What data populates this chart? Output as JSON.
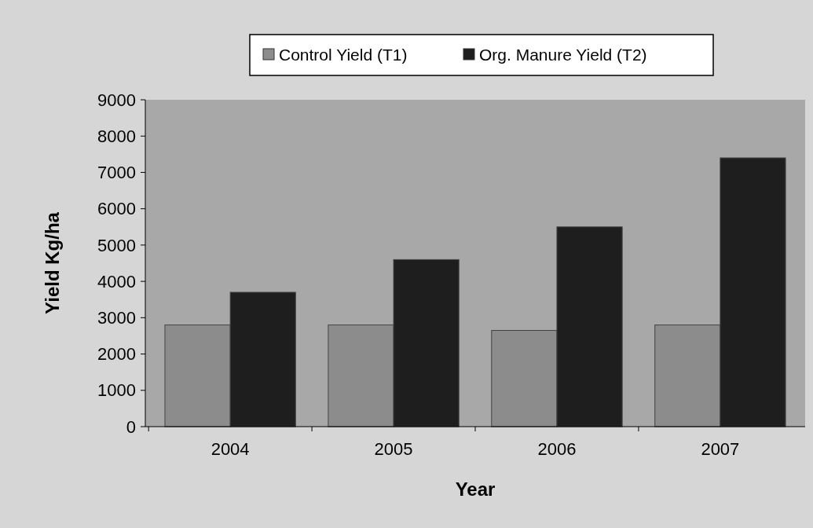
{
  "chart_data": {
    "type": "bar",
    "xlabel": "Year",
    "ylabel": "Yield Kg/ha",
    "categories": [
      "2004",
      "2005",
      "2006",
      "2007"
    ],
    "series": [
      {
        "name": "Control Yield (T1)",
        "color": "#8c8c8c",
        "values": [
          2800,
          2800,
          2650,
          2800
        ]
      },
      {
        "name": "Org. Manure Yield (T2)",
        "color": "#1e1e1e",
        "values": [
          3700,
          4600,
          5500,
          7400
        ]
      }
    ],
    "ylim": [
      0,
      9000
    ],
    "yticks": [
      0,
      1000,
      2000,
      3000,
      4000,
      5000,
      6000,
      7000,
      8000,
      9000
    ],
    "grid": false,
    "legend": "top"
  }
}
